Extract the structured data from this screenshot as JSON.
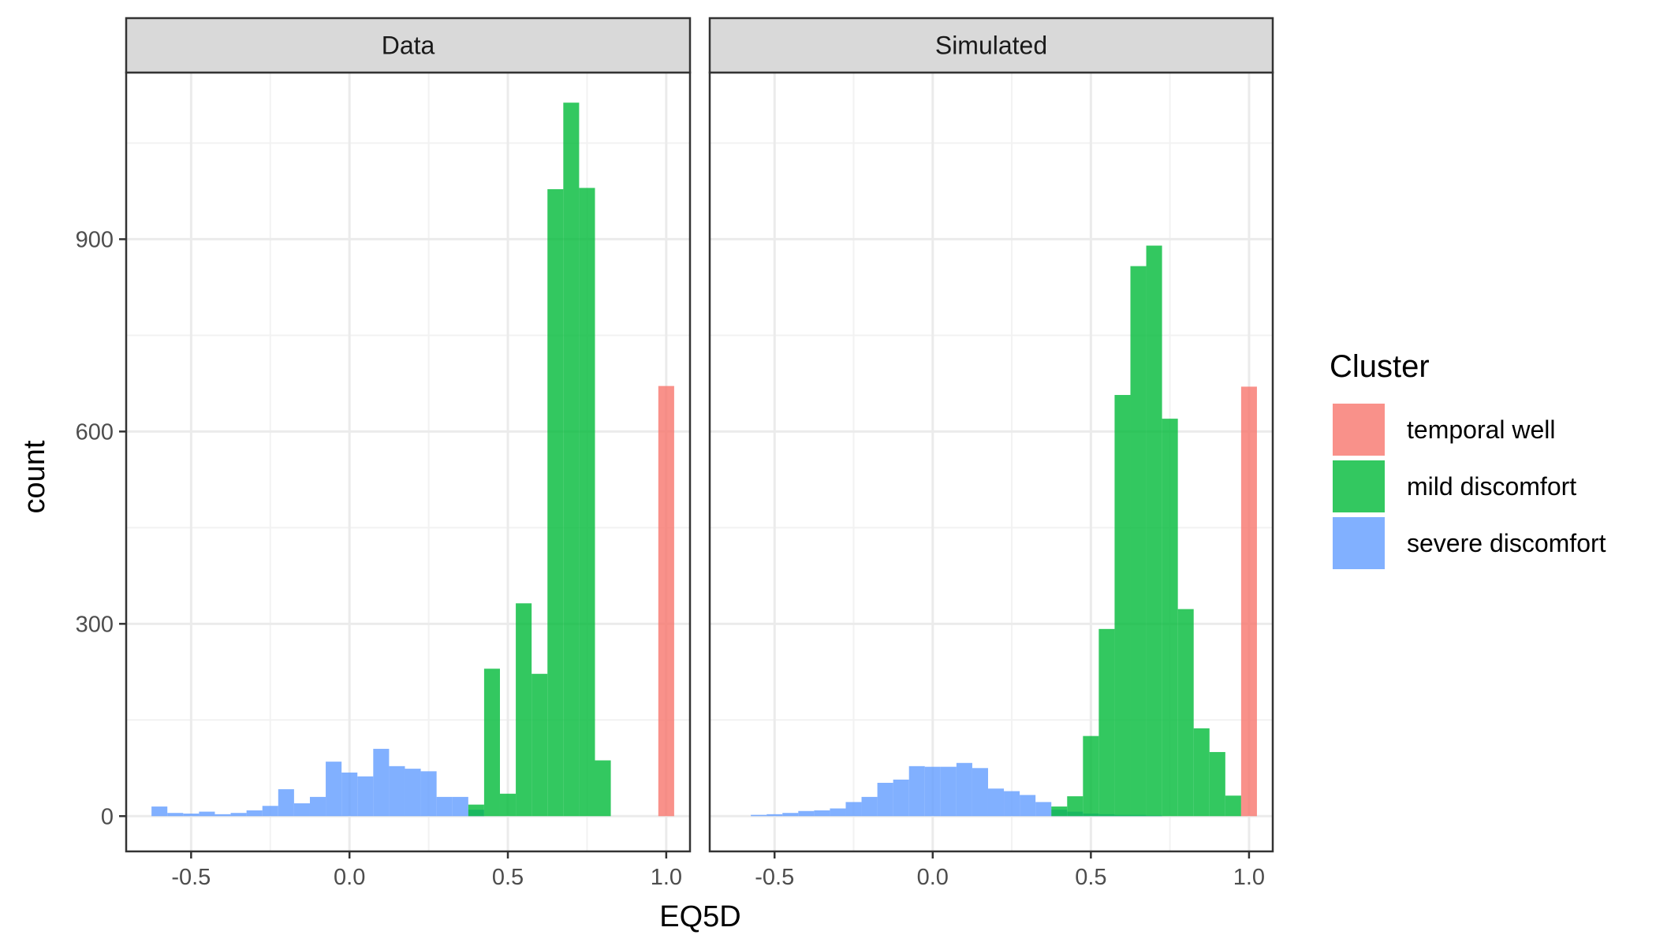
{
  "chart_data": {
    "type": "histogram-faceted",
    "xlabel": "EQ5D",
    "ylabel": "count",
    "x_ticks": [
      -0.5,
      0.0,
      0.5,
      1.0
    ],
    "x_tick_labels": [
      "-0.5",
      "0.0",
      "0.5",
      "1.0"
    ],
    "y_ticks": [
      0,
      300,
      600,
      900
    ],
    "y_tick_labels": [
      "0",
      "300",
      "600",
      "900"
    ],
    "xlim": [
      -0.705,
      1.075
    ],
    "ylim": [
      -55,
      1160
    ],
    "bin_width": 0.05,
    "grid": true,
    "legend": {
      "title": "Cluster",
      "position": "right",
      "entries": [
        {
          "label": "temporal well",
          "color": "#F8766D"
        },
        {
          "label": "mild discomfort",
          "color": "#00BA38"
        },
        {
          "label": "severe discomfort",
          "color": "#619CFF"
        }
      ]
    },
    "panels": [
      {
        "title": "Data",
        "series": [
          {
            "name": "severe discomfort",
            "color": "#619CFF",
            "bins": [
              {
                "x0": -0.625,
                "x1": -0.575,
                "y": 15
              },
              {
                "x0": -0.575,
                "x1": -0.525,
                "y": 5
              },
              {
                "x0": -0.525,
                "x1": -0.475,
                "y": 4
              },
              {
                "x0": -0.475,
                "x1": -0.425,
                "y": 7
              },
              {
                "x0": -0.425,
                "x1": -0.375,
                "y": 3
              },
              {
                "x0": -0.375,
                "x1": -0.325,
                "y": 5
              },
              {
                "x0": -0.325,
                "x1": -0.275,
                "y": 9
              },
              {
                "x0": -0.275,
                "x1": -0.225,
                "y": 16
              },
              {
                "x0": -0.225,
                "x1": -0.175,
                "y": 42
              },
              {
                "x0": -0.175,
                "x1": -0.125,
                "y": 20
              },
              {
                "x0": -0.125,
                "x1": -0.075,
                "y": 30
              },
              {
                "x0": -0.075,
                "x1": -0.025,
                "y": 85
              },
              {
                "x0": -0.025,
                "x1": 0.025,
                "y": 68
              },
              {
                "x0": 0.025,
                "x1": 0.075,
                "y": 62
              },
              {
                "x0": 0.075,
                "x1": 0.125,
                "y": 105
              },
              {
                "x0": 0.125,
                "x1": 0.175,
                "y": 78
              },
              {
                "x0": 0.175,
                "x1": 0.225,
                "y": 74
              },
              {
                "x0": 0.225,
                "x1": 0.275,
                "y": 70
              },
              {
                "x0": 0.275,
                "x1": 0.325,
                "y": 30
              },
              {
                "x0": 0.325,
                "x1": 0.375,
                "y": 30
              },
              {
                "x0": 0.375,
                "x1": 0.425,
                "y": 10
              }
            ]
          },
          {
            "name": "mild discomfort",
            "color": "#00BA38",
            "bins": [
              {
                "x0": 0.375,
                "x1": 0.425,
                "y": 18
              },
              {
                "x0": 0.425,
                "x1": 0.475,
                "y": 230
              },
              {
                "x0": 0.475,
                "x1": 0.525,
                "y": 35
              },
              {
                "x0": 0.525,
                "x1": 0.575,
                "y": 332
              },
              {
                "x0": 0.575,
                "x1": 0.625,
                "y": 222
              },
              {
                "x0": 0.625,
                "x1": 0.675,
                "y": 978
              },
              {
                "x0": 0.675,
                "x1": 0.725,
                "y": 1113
              },
              {
                "x0": 0.725,
                "x1": 0.775,
                "y": 980
              },
              {
                "x0": 0.775,
                "x1": 0.825,
                "y": 87
              }
            ]
          },
          {
            "name": "temporal well",
            "color": "#F8766D",
            "bins": [
              {
                "x0": 0.975,
                "x1": 1.025,
                "y": 671
              }
            ]
          }
        ]
      },
      {
        "title": "Simulated",
        "series": [
          {
            "name": "severe discomfort",
            "color": "#619CFF",
            "bins": [
              {
                "x0": -0.575,
                "x1": -0.525,
                "y": 2
              },
              {
                "x0": -0.525,
                "x1": -0.475,
                "y": 3
              },
              {
                "x0": -0.475,
                "x1": -0.425,
                "y": 5
              },
              {
                "x0": -0.425,
                "x1": -0.375,
                "y": 8
              },
              {
                "x0": -0.375,
                "x1": -0.325,
                "y": 9
              },
              {
                "x0": -0.325,
                "x1": -0.275,
                "y": 12
              },
              {
                "x0": -0.275,
                "x1": -0.225,
                "y": 22
              },
              {
                "x0": -0.225,
                "x1": -0.175,
                "y": 30
              },
              {
                "x0": -0.175,
                "x1": -0.125,
                "y": 52
              },
              {
                "x0": -0.125,
                "x1": -0.075,
                "y": 57
              },
              {
                "x0": -0.075,
                "x1": -0.025,
                "y": 78
              },
              {
                "x0": -0.025,
                "x1": 0.025,
                "y": 77
              },
              {
                "x0": 0.025,
                "x1": 0.075,
                "y": 77
              },
              {
                "x0": 0.075,
                "x1": 0.125,
                "y": 83
              },
              {
                "x0": 0.125,
                "x1": 0.175,
                "y": 75
              },
              {
                "x0": 0.175,
                "x1": 0.225,
                "y": 43
              },
              {
                "x0": 0.225,
                "x1": 0.275,
                "y": 39
              },
              {
                "x0": 0.275,
                "x1": 0.325,
                "y": 33
              },
              {
                "x0": 0.325,
                "x1": 0.375,
                "y": 22
              },
              {
                "x0": 0.375,
                "x1": 0.425,
                "y": 10
              },
              {
                "x0": 0.425,
                "x1": 0.475,
                "y": 7
              },
              {
                "x0": 0.475,
                "x1": 0.525,
                "y": 4
              },
              {
                "x0": 0.525,
                "x1": 0.575,
                "y": 3
              },
              {
                "x0": 0.575,
                "x1": 0.625,
                "y": 2
              },
              {
                "x0": 0.625,
                "x1": 0.675,
                "y": 2
              },
              {
                "x0": 0.675,
                "x1": 0.725,
                "y": 1
              }
            ]
          },
          {
            "name": "mild discomfort",
            "color": "#00BA38",
            "bins": [
              {
                "x0": 0.375,
                "x1": 0.425,
                "y": 15
              },
              {
                "x0": 0.425,
                "x1": 0.475,
                "y": 31
              },
              {
                "x0": 0.475,
                "x1": 0.525,
                "y": 125
              },
              {
                "x0": 0.525,
                "x1": 0.575,
                "y": 292
              },
              {
                "x0": 0.575,
                "x1": 0.625,
                "y": 657
              },
              {
                "x0": 0.625,
                "x1": 0.675,
                "y": 858
              },
              {
                "x0": 0.675,
                "x1": 0.725,
                "y": 890
              },
              {
                "x0": 0.725,
                "x1": 0.775,
                "y": 620
              },
              {
                "x0": 0.775,
                "x1": 0.825,
                "y": 323
              },
              {
                "x0": 0.825,
                "x1": 0.875,
                "y": 137
              },
              {
                "x0": 0.875,
                "x1": 0.925,
                "y": 100
              },
              {
                "x0": 0.925,
                "x1": 0.975,
                "y": 32
              }
            ]
          },
          {
            "name": "temporal well",
            "color": "#F8766D",
            "bins": [
              {
                "x0": 0.975,
                "x1": 1.025,
                "y": 670
              }
            ]
          }
        ]
      }
    ]
  }
}
